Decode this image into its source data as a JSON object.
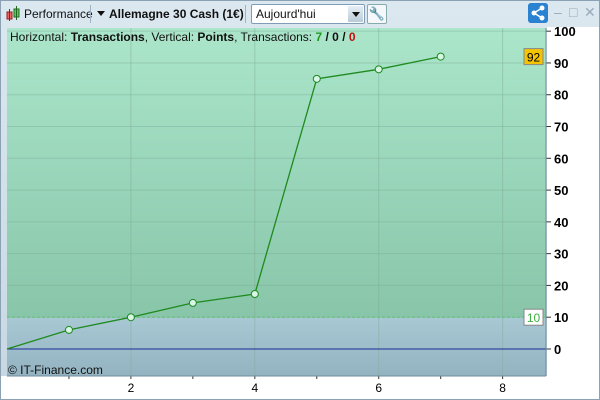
{
  "toolbar": {
    "performance_label": "Performance",
    "instrument": "Allemagne 30 Cash (1€)",
    "period": "Aujourd'hui"
  },
  "info": {
    "h_label": "Horizontal: ",
    "h_value": "Transactions",
    "v_label": ", Vertical: ",
    "v_value": "Points",
    "t_label": ", Transactions: ",
    "t_total": "7",
    "t_sep1": " / ",
    "t_mid": "0",
    "t_sep2": " / ",
    "t_last": "0"
  },
  "copyright": "© IT-Finance.com",
  "colors": {
    "line": "#1e8a1e",
    "upper_bg": "#a6e3c6",
    "lower_bg": "#a4c2cf",
    "zero_line": "#1a2a9a",
    "total_green": "#1e9a1e",
    "last_red": "#c01010",
    "last_value_bg": "#f5c400"
  },
  "chart_data": {
    "type": "line",
    "x": [
      0,
      1,
      2,
      3,
      4,
      5,
      6,
      7
    ],
    "y": [
      0,
      6,
      10,
      14.5,
      17.3,
      85,
      88,
      92
    ],
    "xlim": [
      0,
      8.7
    ],
    "ylim": [
      -8.5,
      101
    ],
    "x_ticks": [
      2,
      4,
      6,
      8
    ],
    "y_ticks": [
      0,
      10,
      20,
      30,
      40,
      50,
      60,
      70,
      80,
      90,
      100
    ],
    "threshold": 10,
    "threshold_label": "10",
    "last_value_label": "92",
    "grid": true
  }
}
